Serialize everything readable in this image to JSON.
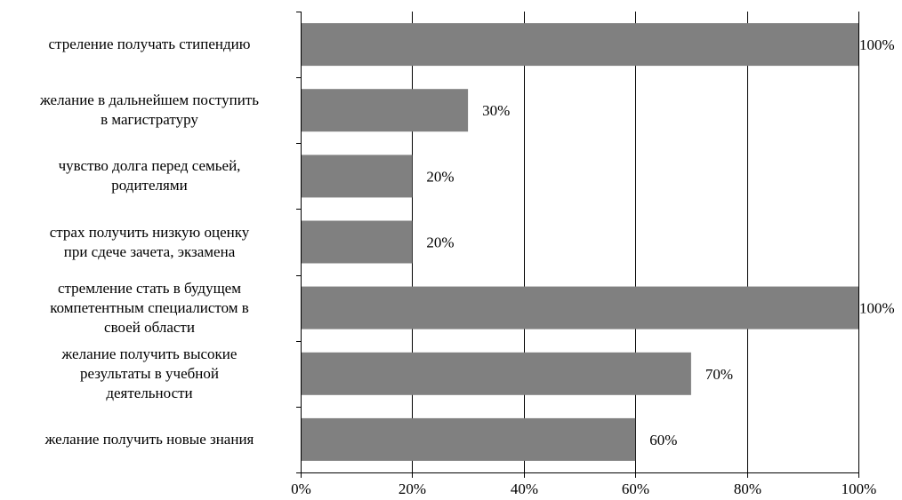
{
  "chart_data": {
    "type": "bar",
    "orientation": "horizontal",
    "categories": [
      [
        "стреление получать стипендию"
      ],
      [
        "желание в дальнейшем поступить",
        "в магистратуру"
      ],
      [
        "чувство долга перед семьей,",
        "родителями"
      ],
      [
        "страх получить низкую оценку",
        "при сдече зачета, экзамена"
      ],
      [
        "стремление стать в будущем",
        "компетентным специалистом в",
        "своей области"
      ],
      [
        "желание получить высокие",
        "результаты в учебной",
        "деятельности"
      ],
      [
        "желание получить новые знания"
      ]
    ],
    "values": [
      100,
      30,
      20,
      20,
      100,
      70,
      60
    ],
    "data_labels": [
      "100%",
      "30%",
      "20%",
      "20%",
      "100%",
      "70%",
      "60%"
    ],
    "xlim": [
      0,
      100
    ],
    "x_ticks": [
      0,
      20,
      40,
      60,
      80,
      100
    ],
    "x_tick_labels": [
      "0%",
      "20%",
      "40%",
      "60%",
      "80%",
      "100%"
    ],
    "grid": "vertical",
    "bar_color": "#808080",
    "title": "",
    "xlabel": "",
    "ylabel": ""
  }
}
